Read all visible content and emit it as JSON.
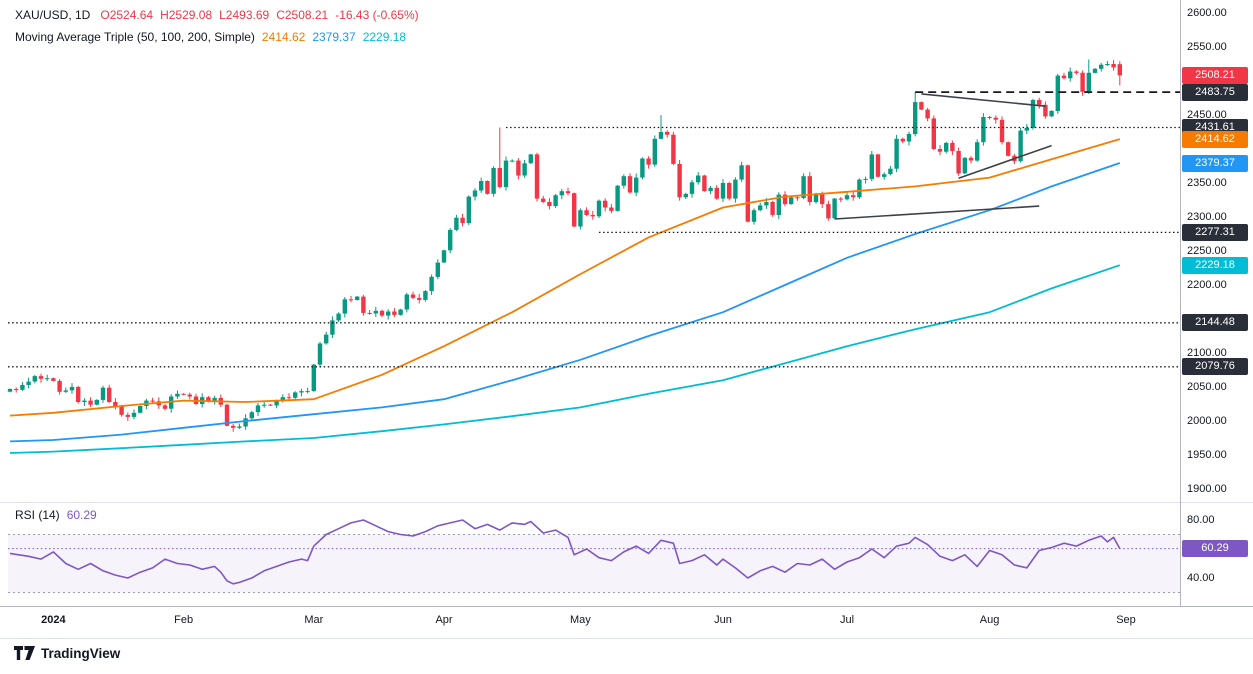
{
  "header": {
    "symbol": "XAU/USD, 1D",
    "open": "O2524.64",
    "high": "H2529.08",
    "low": "L2493.69",
    "close": "C2508.21",
    "change": "-16.43 (-0.65%)",
    "ma_label": "Moving Average Triple (50, 100, 200, Simple)",
    "ma_values": [
      "2414.62",
      "2379.37",
      "2229.18"
    ]
  },
  "rsi_legend": {
    "label": "RSI (14)",
    "value": "60.29"
  },
  "footer": {
    "brand": "TradingView"
  },
  "colors": {
    "up": "#089981",
    "down": "#f23645",
    "ma50": "#f57c00",
    "ma100": "#2196f3",
    "ma200": "#00bcd4",
    "rsi": "#7e57c2",
    "badge_dark": "#2a2e39",
    "text": "#131722",
    "axis_line": "#b2b5be",
    "grid": "#e0e3eb"
  },
  "badges": [
    {
      "label": "2508.21",
      "color_key": "down",
      "pane": "main"
    },
    {
      "label": "2483.75",
      "color_key": "badge_dark",
      "pane": "main"
    },
    {
      "label": "2431.61",
      "color_key": "badge_dark",
      "pane": "main"
    },
    {
      "label": "2414.62",
      "color_key": "ma50",
      "pane": "main"
    },
    {
      "label": "2379.37",
      "color_key": "ma100",
      "pane": "main"
    },
    {
      "label": "2277.31",
      "color_key": "badge_dark",
      "pane": "main"
    },
    {
      "label": "2229.18",
      "color_key": "ma200",
      "pane": "main"
    },
    {
      "label": "2144.48",
      "color_key": "badge_dark",
      "pane": "main"
    },
    {
      "label": "2079.76",
      "color_key": "badge_dark",
      "pane": "main"
    },
    {
      "label": "60.29",
      "color_key": "rsi",
      "pane": "rsi"
    }
  ],
  "chart_data": {
    "type": "candlestick",
    "title": "XAU/USD, 1D",
    "ylim": [
      1890,
      2610
    ],
    "price_ticks": [
      "2600.00",
      "2550.00",
      "2450.00",
      "2350.00",
      "2300.00",
      "2250.00",
      "2200.00",
      "2100.00",
      "2050.00",
      "2000.00",
      "1950.00",
      "1900.00"
    ],
    "time_axis": [
      {
        "label": "2024",
        "i": 7
      },
      {
        "label": "Feb",
        "i": 28
      },
      {
        "label": "Mar",
        "i": 49
      },
      {
        "label": "Apr",
        "i": 70
      },
      {
        "label": "May",
        "i": 92
      },
      {
        "label": "Jun",
        "i": 115
      },
      {
        "label": "Jul",
        "i": 135
      },
      {
        "label": "Aug",
        "i": 158
      },
      {
        "label": "Sep",
        "i": 180
      }
    ],
    "closes": [
      2047,
      2046,
      2053,
      2058,
      2066,
      2062,
      2063,
      2059,
      2043,
      2045,
      2050,
      2028,
      2030,
      2024,
      2031,
      2049,
      2028,
      2022,
      2009,
      2006,
      2012,
      2022,
      2030,
      2029,
      2023,
      2018,
      2036,
      2040,
      2039,
      2036,
      2025,
      2035,
      2030,
      2034,
      2024,
      1993,
      1990,
      1992,
      2004,
      2013,
      2023,
      2024,
      2023,
      2029,
      2035,
      2034,
      2042,
      2044,
      2044,
      2083,
      2114,
      2127,
      2148,
      2158,
      2179,
      2178,
      2183,
      2159,
      2158,
      2162,
      2155,
      2161,
      2156,
      2164,
      2186,
      2181,
      2178,
      2191,
      2212,
      2233,
      2251,
      2281,
      2299,
      2291,
      2330,
      2339,
      2353,
      2334,
      2372,
      2344,
      2383,
      2383,
      2361,
      2379,
      2392,
      2327,
      2322,
      2316,
      2332,
      2338,
      2335,
      2286,
      2310,
      2303,
      2301,
      2324,
      2314,
      2309,
      2346,
      2360,
      2336,
      2358,
      2386,
      2377,
      2415,
      2425,
      2421,
      2378,
      2329,
      2334,
      2351,
      2361,
      2338,
      2343,
      2327,
      2350,
      2327,
      2355,
      2376,
      2293,
      2310,
      2317,
      2322,
      2303,
      2333,
      2319,
      2329,
      2328,
      2360,
      2322,
      2334,
      2319,
      2298,
      2327,
      2326,
      2332,
      2329,
      2355,
      2356,
      2392,
      2359,
      2363,
      2371,
      2415,
      2411,
      2422,
      2469,
      2458,
      2445,
      2400,
      2396,
      2409,
      2397,
      2364,
      2387,
      2383,
      2410,
      2447,
      2446,
      2443,
      2410,
      2390,
      2382,
      2427,
      2431,
      2472,
      2465,
      2448,
      2456,
      2508,
      2504,
      2514,
      2512,
      2484,
      2512,
      2518,
      2524,
      2525,
      2520,
      2508.21
    ],
    "last_candle": {
      "o": 2524.64,
      "h": 2529.08,
      "l": 2493.69,
      "c": 2508.21
    },
    "wick_overrides": {
      "36": {
        "l": 1984.3
      },
      "79": {
        "h": 2431.61
      },
      "105": {
        "h": 2449.9
      },
      "146": {
        "h": 2483.75
      },
      "174": {
        "h": 2531.6
      },
      "179": {
        "o": 2524.64,
        "h": 2529.08,
        "l": 2493.69,
        "c": 2508.21
      }
    },
    "moving_averages": {
      "sma50": {
        "name": "SMA 50",
        "last": 2414.62,
        "color_key": "ma50",
        "points": [
          [
            0,
            2008
          ],
          [
            7,
            2012
          ],
          [
            18,
            2022
          ],
          [
            28,
            2030
          ],
          [
            38,
            2028
          ],
          [
            49,
            2032
          ],
          [
            60,
            2068
          ],
          [
            70,
            2110
          ],
          [
            81,
            2160
          ],
          [
            92,
            2216
          ],
          [
            103,
            2270
          ],
          [
            115,
            2314
          ],
          [
            125,
            2330
          ],
          [
            135,
            2337
          ],
          [
            146,
            2345
          ],
          [
            158,
            2358
          ],
          [
            168,
            2385
          ],
          [
            179,
            2414.62
          ]
        ]
      },
      "sma100": {
        "name": "SMA 100",
        "last": 2379.37,
        "color_key": "ma100",
        "points": [
          [
            0,
            1970
          ],
          [
            7,
            1972
          ],
          [
            18,
            1980
          ],
          [
            28,
            1990
          ],
          [
            38,
            2000
          ],
          [
            49,
            2010
          ],
          [
            60,
            2020
          ],
          [
            70,
            2032
          ],
          [
            81,
            2060
          ],
          [
            92,
            2090
          ],
          [
            103,
            2125
          ],
          [
            115,
            2160
          ],
          [
            125,
            2200
          ],
          [
            135,
            2240
          ],
          [
            146,
            2275
          ],
          [
            158,
            2310
          ],
          [
            168,
            2345
          ],
          [
            179,
            2379.37
          ]
        ]
      },
      "sma200": {
        "name": "SMA 200",
        "last": 2229.18,
        "color_key": "ma200",
        "points": [
          [
            0,
            1953
          ],
          [
            7,
            1955
          ],
          [
            18,
            1960
          ],
          [
            28,
            1965
          ],
          [
            38,
            1970
          ],
          [
            49,
            1975
          ],
          [
            60,
            1985
          ],
          [
            70,
            1995
          ],
          [
            81,
            2007
          ],
          [
            92,
            2020
          ],
          [
            103,
            2040
          ],
          [
            115,
            2060
          ],
          [
            125,
            2085
          ],
          [
            135,
            2110
          ],
          [
            146,
            2135
          ],
          [
            158,
            2160
          ],
          [
            168,
            2195
          ],
          [
            179,
            2229.18
          ]
        ]
      }
    },
    "levels": [
      {
        "price": 2483.75,
        "from_i": 146,
        "style": "dashed"
      },
      {
        "price": 2431.61,
        "from_i": 80,
        "style": "dotted"
      },
      {
        "price": 2277.31,
        "from_i": 95,
        "style": "dotted"
      },
      {
        "price": 2144.48,
        "from_edge": true,
        "style": "dotted"
      },
      {
        "price": 2079.76,
        "from_edge": true,
        "style": "dotted"
      }
    ],
    "trendlines": [
      {
        "i1": 147,
        "p1": 2481,
        "i2": 167,
        "p2": 2463
      },
      {
        "i1": 153,
        "p1": 2357,
        "i2": 168,
        "p2": 2405
      },
      {
        "i1": 133,
        "p1": 2297,
        "i2": 166,
        "p2": 2316
      }
    ],
    "rsi": {
      "period": 14,
      "current": 60.29,
      "upper_band": 70,
      "lower_band": 30,
      "axis_ticks": [
        "80.00",
        "40.00"
      ],
      "points": [
        [
          0,
          57
        ],
        [
          3,
          55
        ],
        [
          5,
          53
        ],
        [
          7,
          58
        ],
        [
          9,
          50
        ],
        [
          11,
          46
        ],
        [
          13,
          50
        ],
        [
          15,
          45
        ],
        [
          17,
          42
        ],
        [
          19,
          40
        ],
        [
          21,
          44
        ],
        [
          23,
          47
        ],
        [
          25,
          53
        ],
        [
          27,
          50
        ],
        [
          29,
          49
        ],
        [
          31,
          46
        ],
        [
          33,
          48
        ],
        [
          34,
          44
        ],
        [
          35,
          38
        ],
        [
          36,
          36
        ],
        [
          37,
          37
        ],
        [
          39,
          40
        ],
        [
          41,
          45
        ],
        [
          43,
          48
        ],
        [
          45,
          51
        ],
        [
          47,
          53
        ],
        [
          48,
          52
        ],
        [
          49,
          62
        ],
        [
          51,
          70
        ],
        [
          53,
          74
        ],
        [
          55,
          78
        ],
        [
          57,
          80
        ],
        [
          59,
          76
        ],
        [
          61,
          72
        ],
        [
          63,
          70
        ],
        [
          65,
          69
        ],
        [
          67,
          72
        ],
        [
          69,
          76
        ],
        [
          71,
          78
        ],
        [
          73,
          80
        ],
        [
          75,
          74
        ],
        [
          77,
          77
        ],
        [
          79,
          73
        ],
        [
          81,
          78
        ],
        [
          83,
          77
        ],
        [
          84,
          79
        ],
        [
          86,
          71
        ],
        [
          88,
          73
        ],
        [
          90,
          68
        ],
        [
          91,
          56
        ],
        [
          93,
          60
        ],
        [
          95,
          54
        ],
        [
          97,
          52
        ],
        [
          99,
          58
        ],
        [
          101,
          62
        ],
        [
          103,
          57
        ],
        [
          105,
          66
        ],
        [
          107,
          64
        ],
        [
          108,
          50
        ],
        [
          110,
          52
        ],
        [
          112,
          56
        ],
        [
          114,
          49
        ],
        [
          115,
          53
        ],
        [
          117,
          47
        ],
        [
          119,
          40
        ],
        [
          121,
          45
        ],
        [
          123,
          48
        ],
        [
          125,
          44
        ],
        [
          127,
          50
        ],
        [
          129,
          49
        ],
        [
          131,
          53
        ],
        [
          133,
          46
        ],
        [
          135,
          51
        ],
        [
          137,
          54
        ],
        [
          139,
          60
        ],
        [
          141,
          54
        ],
        [
          143,
          62
        ],
        [
          145,
          64
        ],
        [
          146,
          68
        ],
        [
          148,
          63
        ],
        [
          150,
          55
        ],
        [
          152,
          52
        ],
        [
          154,
          56
        ],
        [
          156,
          48
        ],
        [
          158,
          59
        ],
        [
          160,
          56
        ],
        [
          162,
          49
        ],
        [
          164,
          47
        ],
        [
          166,
          59
        ],
        [
          168,
          61
        ],
        [
          170,
          64
        ],
        [
          172,
          62
        ],
        [
          174,
          66
        ],
        [
          176,
          69
        ],
        [
          177,
          65
        ],
        [
          178,
          68
        ],
        [
          179,
          60.29
        ]
      ]
    }
  }
}
